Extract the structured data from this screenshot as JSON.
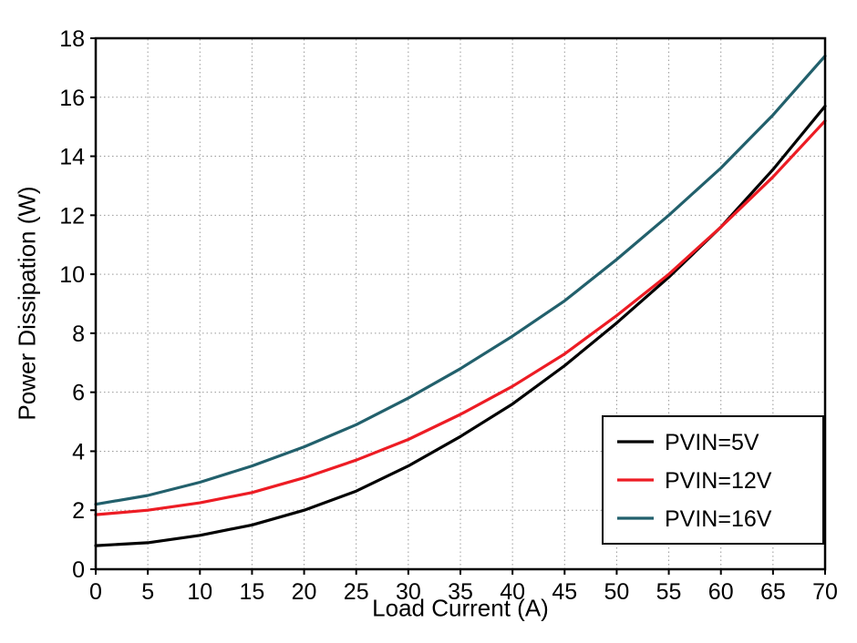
{
  "chart_data": {
    "type": "line",
    "title": "",
    "xlabel": "Load Current (A)",
    "ylabel": "Power Dissipation (W)",
    "xlim": [
      0,
      70
    ],
    "ylim": [
      0,
      18
    ],
    "xticks": [
      0,
      5,
      10,
      15,
      20,
      25,
      30,
      35,
      40,
      45,
      50,
      55,
      60,
      65,
      70
    ],
    "yticks": [
      0,
      2,
      4,
      6,
      8,
      10,
      12,
      14,
      16,
      18
    ],
    "grid": true,
    "grid_color": "#999999",
    "axis_color": "#000000",
    "legend_position": "lower right",
    "x": [
      0,
      5,
      10,
      15,
      20,
      25,
      30,
      35,
      40,
      45,
      50,
      55,
      60,
      65,
      70
    ],
    "series": [
      {
        "name": "PVIN=5V",
        "color": "#000000",
        "values": [
          0.8,
          0.9,
          1.15,
          1.5,
          2.0,
          2.65,
          3.5,
          4.5,
          5.6,
          6.9,
          8.35,
          9.9,
          11.6,
          13.55,
          15.7
        ]
      },
      {
        "name": "PVIN=12V",
        "color": "#ed1c24",
        "values": [
          1.85,
          2.0,
          2.25,
          2.6,
          3.1,
          3.7,
          4.4,
          5.25,
          6.2,
          7.3,
          8.6,
          10.0,
          11.6,
          13.3,
          15.2
        ]
      },
      {
        "name": "PVIN=16V",
        "color": "#22606c",
        "values": [
          2.2,
          2.5,
          2.95,
          3.5,
          4.15,
          4.9,
          5.8,
          6.8,
          7.9,
          9.1,
          10.5,
          12.0,
          13.6,
          15.4,
          17.4
        ]
      }
    ]
  }
}
